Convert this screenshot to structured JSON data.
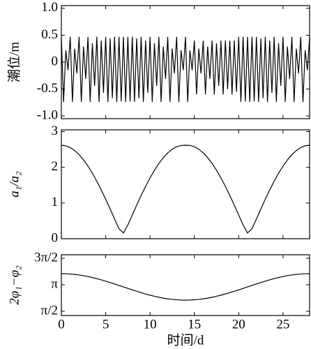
{
  "chart_data": [
    {
      "type": "line",
      "ylabel": "潮位/m",
      "color": "#000000",
      "xlim": [
        0,
        28
      ],
      "xticks": [
        0,
        5,
        10,
        15,
        20,
        25
      ],
      "ylim": [
        -1.05,
        1.05
      ],
      "yticks": [
        {
          "value": 1,
          "label": "1.0"
        },
        0.5,
        0,
        -0.5,
        {
          "value": -1,
          "label": "-1.0"
        }
      ],
      "x": [
        0,
        0.25,
        0.5,
        0.75,
        1,
        1.25,
        1.5,
        1.75,
        2,
        2.25,
        2.5,
        2.75,
        3,
        3.25,
        3.5,
        3.75,
        4,
        4.25,
        4.5,
        4.75,
        5,
        5.25,
        5.5,
        5.75,
        6,
        6.25,
        6.5,
        6.75,
        7,
        7.25,
        7.5,
        7.75,
        8,
        8.25,
        8.5,
        8.75,
        9,
        9.25,
        9.5,
        9.75,
        10,
        10.25,
        10.5,
        10.75,
        11,
        11.25,
        11.5,
        11.75,
        12,
        12.25,
        12.5,
        12.75,
        13,
        13.25,
        13.5,
        13.75,
        14,
        14.25,
        14.5,
        14.75,
        15,
        15.25,
        15.5,
        15.75,
        16,
        16.25,
        16.5,
        16.75,
        17,
        17.25,
        17.5,
        17.75,
        18,
        18.25,
        18.5,
        18.75,
        19,
        19.25,
        19.5,
        19.75,
        20,
        20.25,
        20.5,
        20.75,
        21,
        21.25,
        21.5,
        21.75,
        22,
        22.25,
        22.5,
        22.75,
        23,
        23.25,
        23.5,
        23.75,
        24,
        24.25,
        24.5,
        24.75,
        25,
        25.25,
        25.5,
        25.75,
        26,
        26.25,
        26.5,
        26.75,
        27,
        27.25,
        27.5,
        27.75,
        28
      ],
      "values": [
        0.47,
        -0.74,
        0.22,
        -0.15,
        0.47,
        -0.74,
        0.25,
        -0.21,
        0.47,
        -0.74,
        0.29,
        -0.31,
        0.47,
        -0.74,
        0.35,
        -0.44,
        0.47,
        -0.74,
        0.4,
        -0.57,
        0.47,
        -0.74,
        0.44,
        -0.67,
        0.47,
        -0.74,
        0.47,
        -0.73,
        0.47,
        -0.74,
        0.47,
        -0.73,
        0.47,
        -0.74,
        0.44,
        -0.67,
        0.47,
        -0.74,
        0.4,
        -0.57,
        0.47,
        -0.74,
        0.35,
        -0.44,
        0.47,
        -0.74,
        0.29,
        -0.31,
        0.47,
        -0.74,
        0.25,
        -0.21,
        0.47,
        -0.74,
        0.22,
        -0.15,
        0.47,
        -0.74,
        0.22,
        -0.15,
        0.4,
        -0.6,
        0.25,
        -0.21,
        0.4,
        -0.6,
        0.29,
        -0.31,
        0.4,
        -0.6,
        0.35,
        -0.44,
        0.4,
        -0.6,
        0.4,
        -0.5,
        0.4,
        -0.6,
        0.4,
        -0.55,
        0.47,
        -0.74,
        0.47,
        -0.73,
        0.47,
        -0.74,
        0.47,
        -0.73,
        0.47,
        -0.74,
        0.44,
        -0.67,
        0.47,
        -0.74,
        0.4,
        -0.57,
        0.47,
        -0.74,
        0.35,
        -0.44,
        0.47,
        -0.74,
        0.29,
        -0.31,
        0.47,
        -0.74,
        0.25,
        -0.21,
        0.47,
        -0.74,
        0.22,
        -0.15,
        0.47
      ]
    },
    {
      "type": "line",
      "ylabel": "a₁/a₂",
      "color": "#000000",
      "xlim": [
        0,
        28
      ],
      "xticks": [
        0,
        5,
        10,
        15,
        20,
        25
      ],
      "ylim": [
        0,
        3.05
      ],
      "yticks": [
        3,
        2,
        1,
        0
      ],
      "x": [
        0,
        0.5,
        1,
        1.5,
        2,
        2.5,
        3,
        3.5,
        4,
        4.5,
        5,
        5.5,
        6,
        6.5,
        7,
        7.5,
        8,
        8.5,
        9,
        9.5,
        10,
        10.5,
        11,
        11.5,
        12,
        12.5,
        13,
        13.5,
        14,
        14.5,
        15,
        15.5,
        16,
        16.5,
        17,
        17.5,
        18,
        18.5,
        19,
        19.5,
        20,
        20.5,
        21,
        21.5,
        22,
        22.5,
        23,
        23.5,
        24,
        24.5,
        25,
        25.5,
        26,
        26.5,
        27,
        27.5,
        28
      ],
      "values": [
        2.62,
        2.603,
        2.553,
        2.469,
        2.354,
        2.208,
        2.035,
        1.835,
        1.611,
        1.367,
        1.106,
        0.833,
        0.552,
        0.281,
        0.16,
        0.386,
        0.665,
        0.944,
        1.212,
        1.467,
        1.703,
        1.918,
        2.107,
        2.27,
        2.404,
        2.506,
        2.577,
        2.614,
        2.617,
        2.614,
        2.577,
        2.506,
        2.404,
        2.27,
        2.107,
        1.918,
        1.703,
        1.467,
        1.212,
        0.944,
        0.665,
        0.386,
        0.16,
        0.281,
        0.552,
        0.833,
        1.106,
        1.367,
        1.611,
        1.835,
        2.035,
        2.208,
        2.354,
        2.469,
        2.553,
        2.603,
        2.62
      ]
    },
    {
      "type": "line",
      "ylabel": "2φ₁−φ₂",
      "xlabel": "时间/d",
      "color": "#000000",
      "xlim": [
        0,
        28
      ],
      "xticks": [
        0,
        5,
        10,
        15,
        20,
        25
      ],
      "ylim": [
        1.32,
        4.92
      ],
      "yticks": [
        {
          "value": 4.7124,
          "label": "3π/2"
        },
        {
          "value": 3.1416,
          "label": "π"
        },
        {
          "value": 1.5708,
          "label": "π/2"
        }
      ],
      "x": [
        0,
        0.5,
        1,
        1.5,
        2,
        2.5,
        3,
        3.5,
        4,
        4.5,
        5,
        5.5,
        6,
        6.5,
        7,
        7.5,
        8,
        8.5,
        9,
        9.5,
        10,
        10.5,
        11,
        11.5,
        12,
        12.5,
        13,
        13.5,
        14,
        14.5,
        15,
        15.5,
        16,
        16.5,
        17,
        17.5,
        18,
        18.5,
        19,
        19.5,
        20,
        20.5,
        21,
        21.5,
        22,
        22.5,
        23,
        23.5,
        24,
        24.5,
        25,
        25.5,
        26,
        26.5,
        27,
        27.5,
        28
      ],
      "values": [
        3.8,
        3.795,
        3.78,
        3.756,
        3.722,
        3.68,
        3.629,
        3.57,
        3.504,
        3.433,
        3.356,
        3.274,
        3.19,
        3.103,
        3.015,
        2.927,
        2.84,
        2.756,
        2.674,
        2.597,
        2.526,
        2.46,
        2.401,
        2.35,
        2.308,
        2.274,
        2.25,
        2.235,
        2.23,
        2.235,
        2.25,
        2.274,
        2.308,
        2.35,
        2.401,
        2.46,
        2.526,
        2.597,
        2.674,
        2.756,
        2.84,
        2.927,
        3.015,
        3.103,
        3.19,
        3.274,
        3.356,
        3.433,
        3.504,
        3.57,
        3.629,
        3.68,
        3.722,
        3.756,
        3.78,
        3.795,
        3.8
      ]
    }
  ]
}
